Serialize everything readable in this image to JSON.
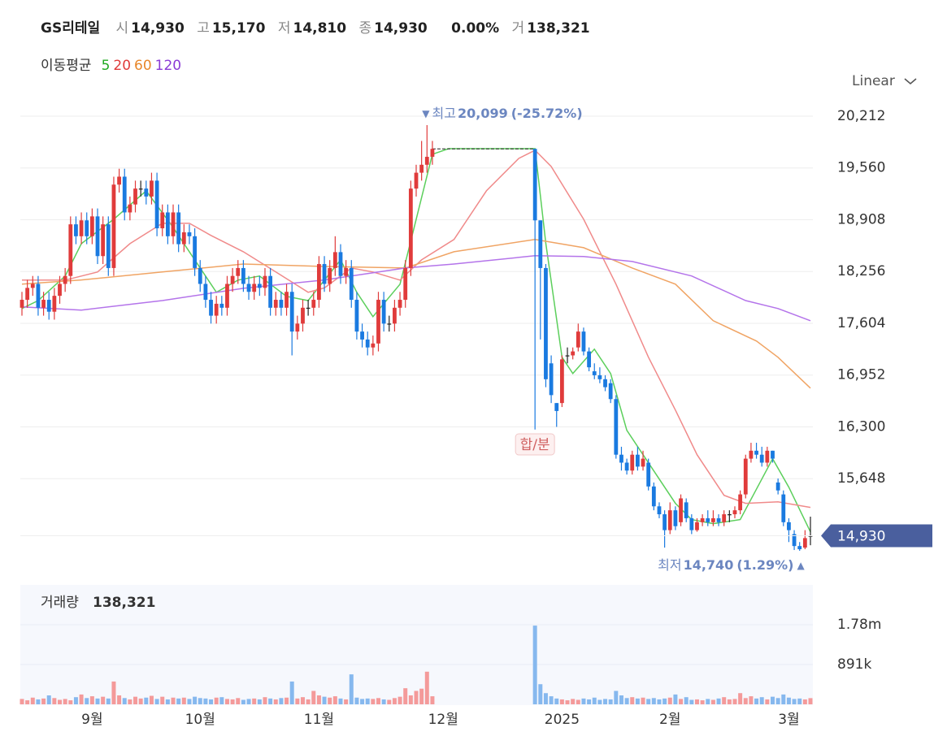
{
  "header": {
    "name": "GS리테일",
    "items": [
      {
        "label": "시",
        "value": "14,930"
      },
      {
        "label": "고",
        "value": "15,170"
      },
      {
        "label": "저",
        "value": "14,810"
      },
      {
        "label": "종",
        "value": "14,930"
      }
    ],
    "change": "0.00%",
    "volume_label": "거",
    "volume": "138,321"
  },
  "ma_title": "이동평균",
  "scale_menu": "Linear",
  "chart_data": [
    {
      "type": "candlestick",
      "up_color": "#e03b3b",
      "down_color": "#1a7ae0",
      "flat_color": "#222222",
      "xlim": [
        0,
        146
      ],
      "ylim": [
        14413,
        20498
      ],
      "xticks": [
        {
          "value": 13,
          "label": "9월"
        },
        {
          "value": 33,
          "label": "10월"
        },
        {
          "value": 55,
          "label": "11월"
        },
        {
          "value": 78,
          "label": "12월"
        },
        {
          "value": 100,
          "label": "2025"
        },
        {
          "value": 120,
          "label": "2월"
        },
        {
          "value": 142,
          "label": "3월"
        }
      ],
      "yticks": [
        {
          "value": 15648,
          "label": "15,648"
        },
        {
          "value": 16300,
          "label": "16,300"
        },
        {
          "value": 16952,
          "label": "16,952"
        },
        {
          "value": 17604,
          "label": "17,604"
        },
        {
          "value": 18256,
          "label": "18,256"
        },
        {
          "value": 18908,
          "label": "18,908"
        },
        {
          "value": 19560,
          "label": "19,560"
        },
        {
          "value": 20212,
          "label": "20,212"
        }
      ],
      "grid": true,
      "open": [
        17800,
        17900,
        18050,
        18100,
        17800,
        17900,
        17750,
        17950,
        18100,
        18200,
        18850,
        18700,
        18900,
        18700,
        18950,
        18450,
        18850,
        18300,
        19350,
        19450,
        19000,
        19100,
        19300,
        19300,
        19200,
        19400,
        18800,
        19000,
        18700,
        19000,
        18600,
        18750,
        18700,
        18300,
        18100,
        17900,
        17700,
        17850,
        17800,
        18100,
        18200,
        18300,
        18100,
        18000,
        18100,
        18050,
        18200,
        17800,
        17900,
        17800,
        18000,
        17500,
        17600,
        17800,
        17800,
        17900,
        18350,
        18100,
        18300,
        18500,
        18200,
        18300,
        17900,
        17500,
        17400,
        17300,
        17350,
        17900,
        17600,
        17600,
        17800,
        17900,
        18300,
        19300,
        19500,
        19600,
        19700,
        null,
        null,
        null,
        null,
        null,
        null,
        null,
        null,
        null,
        null,
        null,
        null,
        null,
        null,
        null,
        null,
        null,
        null,
        19800,
        18900,
        18300,
        17100,
        16600,
        16600,
        17200,
        17200,
        17300,
        17500,
        17250,
        17000,
        16950,
        16900,
        16850,
        16650,
        15950,
        15850,
        15750,
        15950,
        15800,
        15850,
        15550,
        15300,
        15200,
        15000,
        15250,
        15100,
        15350,
        15150,
        15000,
        15100,
        15150,
        15100,
        15150,
        15100,
        15200,
        15200,
        15250,
        15450,
        15900,
        16000,
        15950,
        15850,
        16000,
        15600,
        15450,
        15100,
        14950,
        14800,
        14780,
        14930
      ],
      "high": [
        18000,
        18150,
        18200,
        18200,
        18000,
        18000,
        18050,
        18200,
        18300,
        18950,
        18950,
        19000,
        19000,
        19050,
        19050,
        18950,
        18950,
        19450,
        19550,
        19550,
        19200,
        19400,
        19400,
        19400,
        19500,
        19500,
        19100,
        19100,
        19100,
        19100,
        18850,
        18850,
        18800,
        18400,
        18200,
        18000,
        17950,
        17950,
        18200,
        18300,
        18400,
        18400,
        18200,
        18200,
        18200,
        18300,
        18300,
        18000,
        18000,
        18100,
        18100,
        17700,
        17900,
        17900,
        18000,
        18450,
        18450,
        18400,
        18700,
        18600,
        18400,
        18400,
        18000,
        17600,
        17500,
        17450,
        18000,
        18000,
        17700,
        17900,
        18000,
        18400,
        19400,
        19600,
        19900,
        20099,
        19900,
        null,
        null,
        null,
        null,
        null,
        null,
        null,
        null,
        null,
        null,
        null,
        null,
        null,
        null,
        null,
        null,
        null,
        null,
        19800,
        18900,
        18350,
        17200,
        16600,
        17200,
        17300,
        17300,
        17600,
        17550,
        17300,
        17100,
        17050,
        16950,
        16900,
        16700,
        16050,
        15900,
        16000,
        16050,
        16000,
        15900,
        15600,
        15350,
        15250,
        15350,
        15300,
        15450,
        15400,
        15200,
        15150,
        15200,
        15250,
        15250,
        15200,
        15250,
        15250,
        15300,
        15500,
        15950,
        16100,
        16100,
        16050,
        16050,
        16000,
        15650,
        15500,
        15150,
        15000,
        14850,
        15000,
        15170
      ],
      "low": [
        17700,
        17800,
        17950,
        17700,
        17700,
        17650,
        17650,
        17850,
        18000,
        18100,
        18600,
        18600,
        18600,
        18600,
        18350,
        18350,
        18200,
        18200,
        19250,
        18900,
        18900,
        19000,
        19200,
        19100,
        19100,
        18700,
        18700,
        18600,
        18600,
        18500,
        18500,
        18600,
        18200,
        18000,
        17800,
        17600,
        17600,
        17700,
        17700,
        18000,
        18100,
        18000,
        17900,
        17900,
        17950,
        17950,
        17700,
        17700,
        17700,
        17700,
        17200,
        17400,
        17500,
        17700,
        17700,
        17800,
        18000,
        18000,
        18200,
        18100,
        18100,
        17800,
        17400,
        17300,
        17200,
        17200,
        17250,
        17500,
        17500,
        17500,
        17700,
        17800,
        18200,
        19200,
        19400,
        19500,
        19600,
        null,
        null,
        null,
        null,
        null,
        null,
        null,
        null,
        null,
        null,
        null,
        null,
        null,
        null,
        null,
        null,
        null,
        null,
        16266,
        17400,
        16800,
        16600,
        16300,
        16550,
        17100,
        17150,
        17250,
        17200,
        17000,
        16900,
        16850,
        16750,
        16600,
        15900,
        15750,
        15700,
        15700,
        15750,
        15750,
        15500,
        15250,
        15150,
        14780,
        14950,
        15000,
        15050,
        15100,
        14950,
        14980,
        15050,
        15050,
        15050,
        15050,
        15050,
        15100,
        15150,
        15200,
        15400,
        15850,
        15900,
        15800,
        15800,
        15850,
        15450,
        15050,
        14850,
        14750,
        14740,
        14760,
        14810
      ],
      "close": [
        17900,
        18050,
        18100,
        17800,
        17900,
        17750,
        17950,
        18100,
        18200,
        18850,
        18700,
        18900,
        18700,
        18950,
        18450,
        18850,
        18300,
        19350,
        19450,
        19000,
        19100,
        19300,
        19300,
        19200,
        19400,
        18800,
        19000,
        18700,
        19000,
        18600,
        18750,
        18700,
        18300,
        18100,
        17900,
        17700,
        17850,
        17800,
        18100,
        18200,
        18300,
        18100,
        18000,
        18100,
        18050,
        18200,
        17800,
        17900,
        17800,
        18000,
        17500,
        17600,
        17800,
        17800,
        17900,
        18350,
        18100,
        18300,
        18500,
        18200,
        18300,
        17900,
        17500,
        17400,
        17300,
        17350,
        17900,
        17600,
        17600,
        17800,
        17900,
        18300,
        19300,
        19500,
        19600,
        19700,
        19800,
        null,
        null,
        null,
        null,
        null,
        null,
        null,
        null,
        null,
        null,
        null,
        null,
        null,
        null,
        null,
        null,
        null,
        null,
        18900,
        18300,
        16900,
        16700,
        16500,
        17150,
        17200,
        17250,
        17500,
        17250,
        17050,
        16950,
        16900,
        16800,
        16650,
        15950,
        15850,
        15750,
        15950,
        15800,
        15900,
        15550,
        15300,
        15200,
        15000,
        15250,
        15050,
        15400,
        15150,
        15000,
        15100,
        15150,
        15100,
        15150,
        15100,
        15200,
        15200,
        15250,
        15450,
        15900,
        16000,
        15950,
        15850,
        16000,
        15900,
        15500,
        15100,
        15000,
        14800,
        14760,
        14900,
        14930
      ],
      "series": [
        {
          "name": "5",
          "color": "#5ccf5c",
          "label_color": "#22aa22",
          "x": [
            0,
            3,
            8,
            11,
            17,
            23,
            28,
            32,
            36,
            40,
            44,
            49,
            53,
            56,
            59,
            62,
            65,
            70,
            73,
            76,
            79,
            95,
            97,
            100,
            102,
            106,
            109,
            112,
            116,
            121,
            124,
            128,
            133,
            137,
            139,
            142,
            146
          ],
          "values": [
            17790,
            17890,
            18199,
            18607,
            18914,
            19272,
            18812,
            18403,
            17994,
            18148,
            18199,
            17943,
            17890,
            18148,
            18403,
            17994,
            17688,
            18097,
            18914,
            19732,
            19803,
            19803,
            18607,
            17177,
            16972,
            17279,
            16972,
            16257,
            15848,
            15337,
            15133,
            15082,
            15133,
            15643,
            15899,
            15541,
            14979
          ]
        },
        {
          "name": "20",
          "color": "#f08a8a",
          "label_color": "#e03b3b",
          "x": [
            0,
            8,
            14,
            20,
            26,
            31,
            35,
            41,
            47,
            53,
            56,
            61,
            65,
            70,
            74,
            80,
            86,
            92,
            95,
            98,
            104,
            110,
            116,
            121,
            125,
            130,
            134,
            140,
            146
          ],
          "values": [
            18148,
            18148,
            18250,
            18607,
            18863,
            18863,
            18710,
            18505,
            18250,
            17994,
            18050,
            18300,
            18250,
            18148,
            18403,
            18659,
            19272,
            19680,
            19783,
            19578,
            18914,
            18097,
            17177,
            16512,
            15950,
            15439,
            15337,
            15357,
            15286
          ]
        },
        {
          "name": "60",
          "color": "#f0a464",
          "label_color": "#e8862a",
          "x": [
            0,
            11,
            26,
            41,
            56,
            71,
            80,
            95,
            104,
            113,
            121,
            128,
            136,
            140,
            146
          ],
          "values": [
            18097,
            18150,
            18250,
            18350,
            18320,
            18300,
            18505,
            18660,
            18556,
            18300,
            18097,
            17637,
            17381,
            17176,
            16788
          ]
        },
        {
          "name": "120",
          "color": "#b474ea",
          "label_color": "#8a3ad6",
          "x": [
            0,
            11,
            26,
            41,
            56,
            71,
            80,
            95,
            104,
            113,
            124,
            134,
            140,
            146
          ],
          "values": [
            17810,
            17770,
            17890,
            18045,
            18150,
            18300,
            18350,
            18455,
            18444,
            18382,
            18200,
            17890,
            17790,
            17637
          ]
        }
      ],
      "annotations": {
        "high": {
          "marker": "▼",
          "label": "최고",
          "value": 20099,
          "value_label": "20,099",
          "change_label": "(-25.72%)",
          "x": 75
        },
        "low": {
          "marker": "▲",
          "label": "최저",
          "value": 14740,
          "value_label": "14,740",
          "change_label": "(1.29%)",
          "x": 144
        },
        "event": {
          "label": "합/분",
          "x": 95
        }
      },
      "last_price": {
        "value": 14930,
        "label": "14,930"
      }
    },
    {
      "type": "bar",
      "title": "거래량",
      "value_label": "138,321",
      "up_color": "#f49a9a",
      "down_color": "#86b8ee",
      "ylim": [
        0,
        2670000
      ],
      "yticks": [
        {
          "value": 891000,
          "label": "891k"
        },
        {
          "value": 1780000,
          "label": "1.78m"
        }
      ],
      "values": [
        120000,
        90000,
        150000,
        110000,
        130000,
        200000,
        140000,
        100000,
        120000,
        90000,
        160000,
        220000,
        140000,
        180000,
        130000,
        170000,
        130000,
        510000,
        200000,
        140000,
        110000,
        170000,
        130000,
        150000,
        190000,
        120000,
        170000,
        110000,
        150000,
        130000,
        150000,
        120000,
        170000,
        140000,
        130000,
        110000,
        150000,
        160000,
        120000,
        110000,
        140000,
        100000,
        120000,
        130000,
        110000,
        160000,
        130000,
        110000,
        140000,
        150000,
        510000,
        130000,
        160000,
        110000,
        300000,
        200000,
        170000,
        150000,
        180000,
        130000,
        110000,
        670000,
        150000,
        120000,
        130000,
        120000,
        140000,
        110000,
        100000,
        140000,
        170000,
        360000,
        200000,
        300000,
        350000,
        730000,
        180000,
        null,
        null,
        null,
        null,
        null,
        null,
        null,
        null,
        null,
        null,
        null,
        null,
        null,
        null,
        null,
        null,
        null,
        null,
        1760000,
        450000,
        250000,
        180000,
        130000,
        110000,
        90000,
        120000,
        100000,
        130000,
        110000,
        150000,
        100000,
        120000,
        110000,
        300000,
        200000,
        140000,
        160000,
        130000,
        150000,
        120000,
        140000,
        110000,
        130000,
        150000,
        220000,
        120000,
        160000,
        100000,
        110000,
        90000,
        120000,
        100000,
        130000,
        160000,
        110000,
        120000,
        250000,
        140000,
        180000,
        130000,
        160000,
        110000,
        170000,
        140000,
        220000,
        150000,
        120000,
        130000,
        110000,
        138321
      ]
    }
  ]
}
